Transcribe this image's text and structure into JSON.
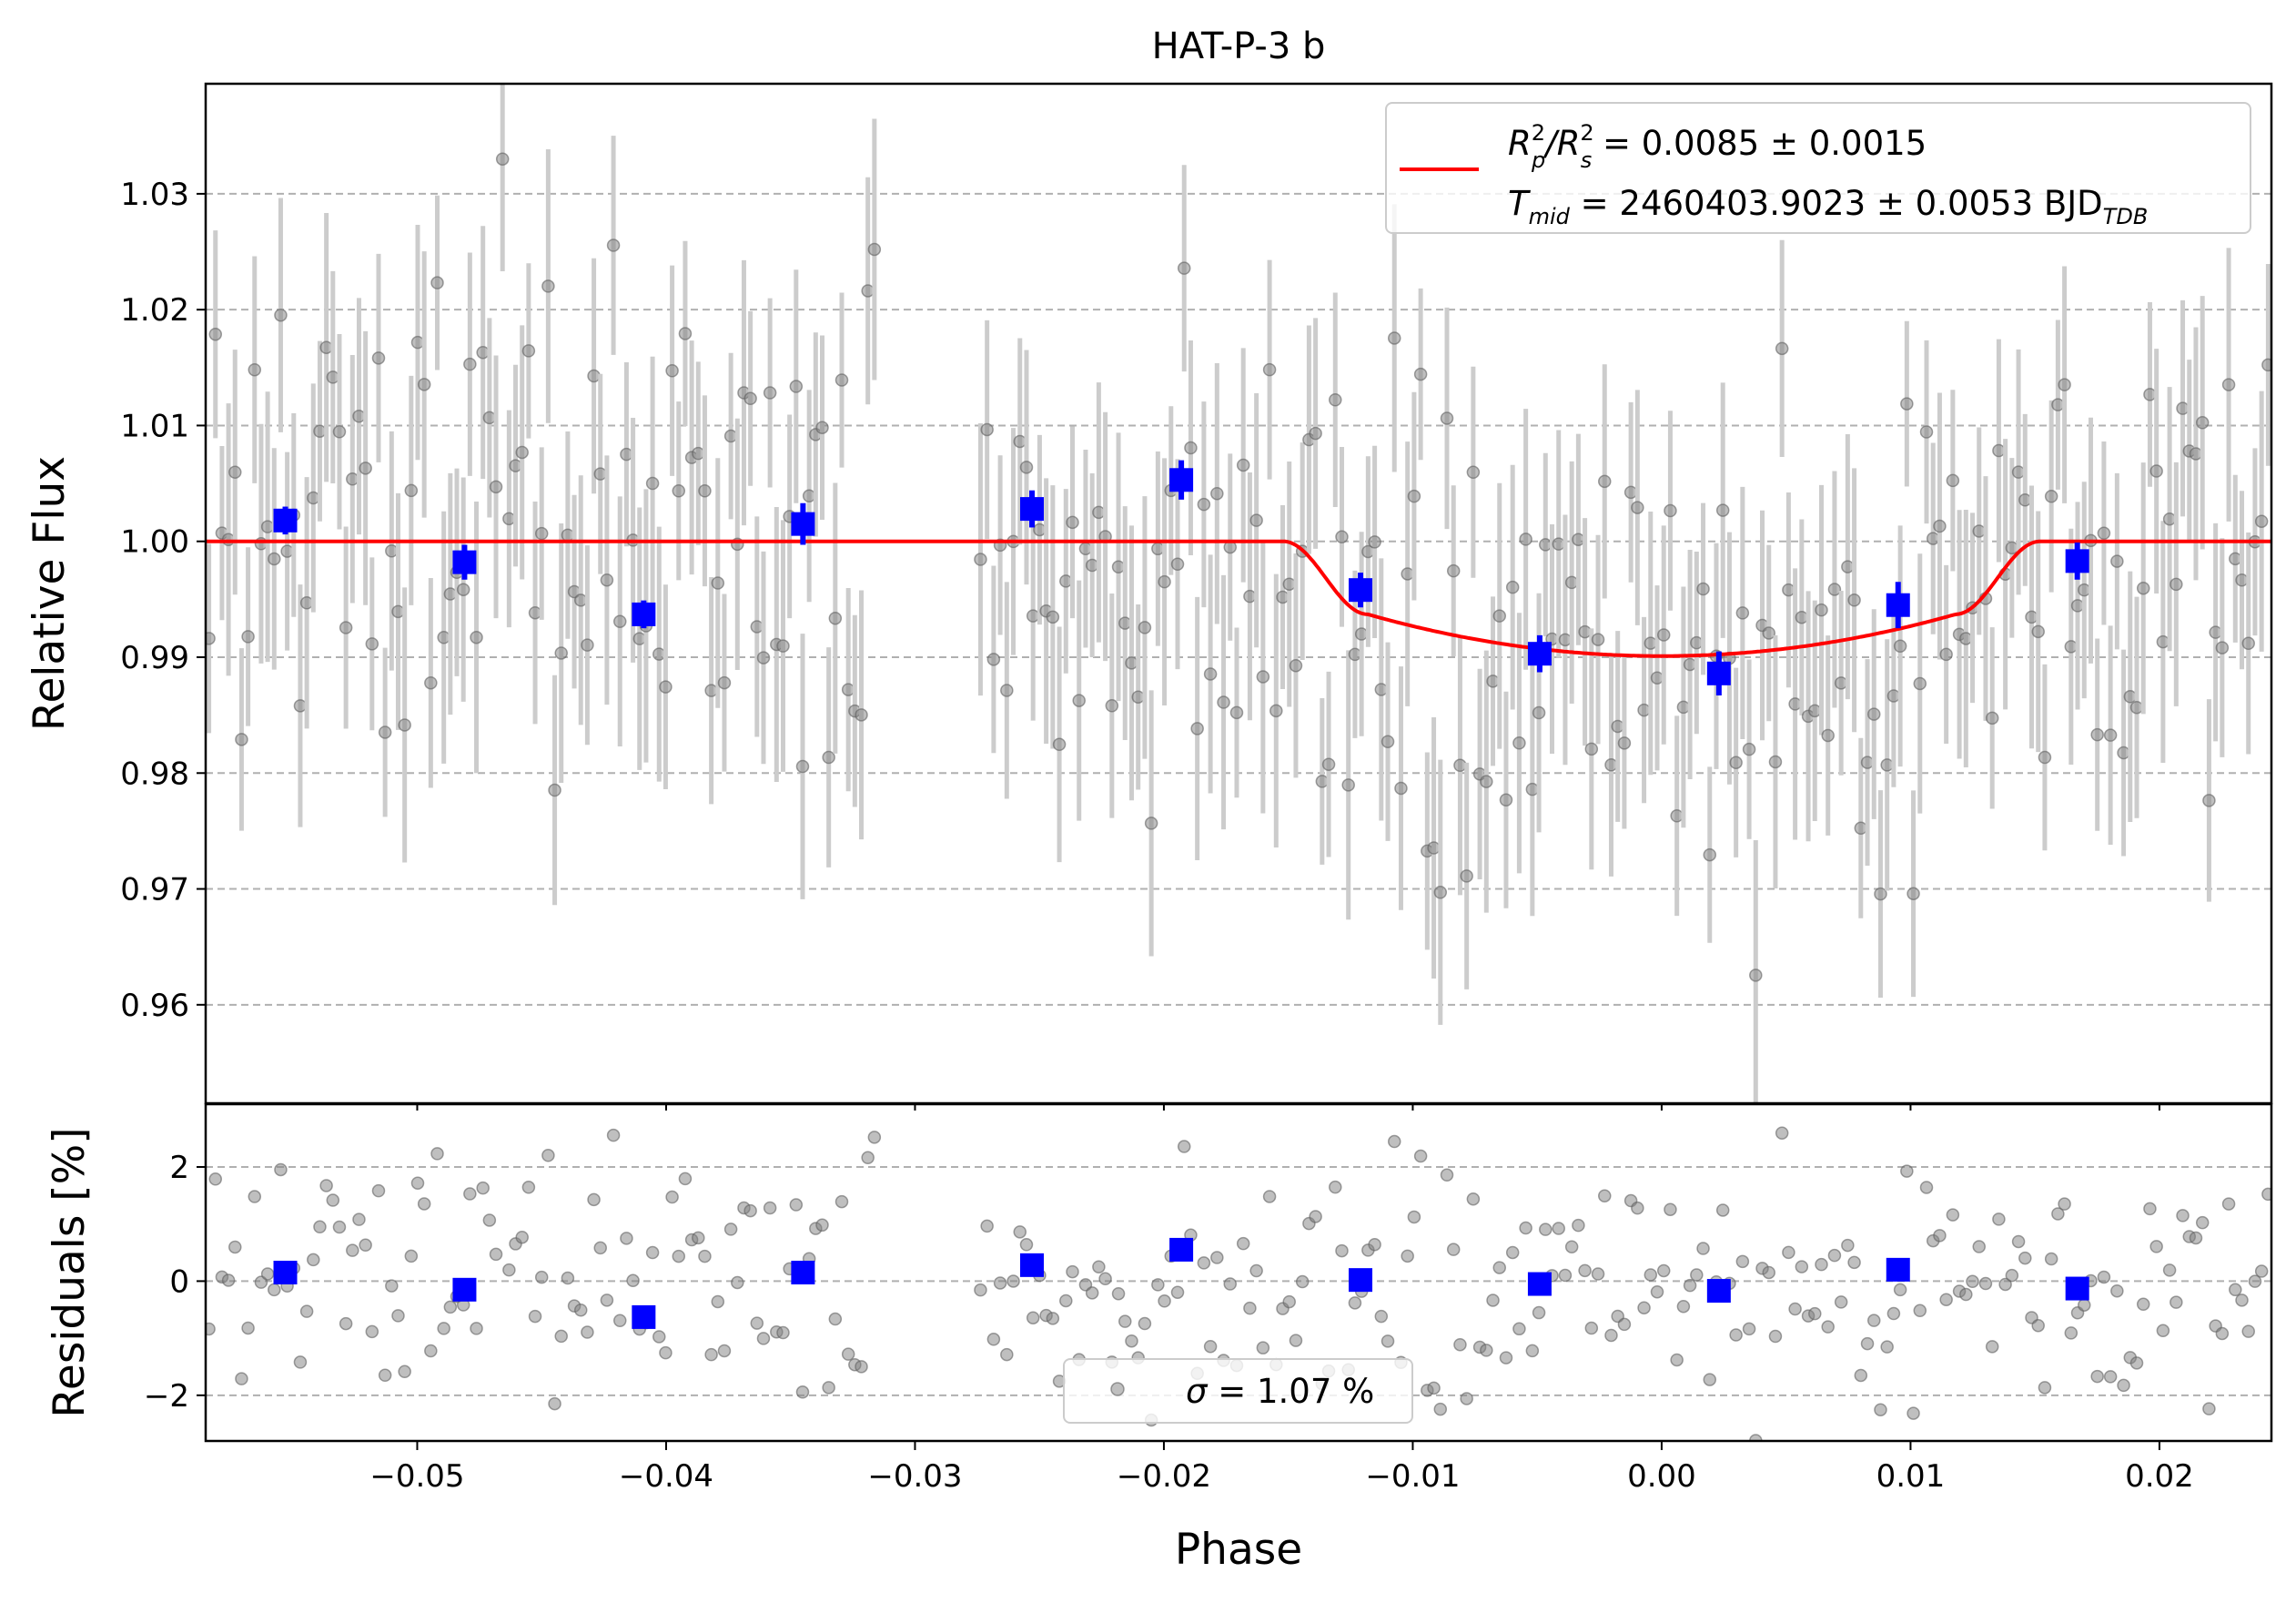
{
  "chart_data": [
    {
      "type": "scatter",
      "panel": "light curve",
      "title": "HAT-P-3 b",
      "xlabel": "Phase",
      "ylabel": "Relative Flux",
      "xlim": [
        -0.0585,
        0.0245
      ],
      "ylim": [
        0.9515,
        1.0395
      ],
      "grid": "y dashed",
      "x_ticks": [
        "−0.05",
        "−0.04",
        "−0.03",
        "−0.02",
        "−0.01",
        "0.00",
        "0.01",
        "0.02"
      ],
      "x_tick_values": [
        -0.05,
        -0.04,
        -0.03,
        -0.02,
        -0.01,
        0.0,
        0.01,
        0.02
      ],
      "y_ticks": [
        "0.96",
        "0.97",
        "0.98",
        "0.99",
        "1.00",
        "1.01",
        "1.02",
        "1.03"
      ],
      "y_tick_values": [
        0.96,
        0.97,
        0.98,
        0.99,
        1.0,
        1.01,
        1.02,
        1.03
      ],
      "legend": {
        "placement": "upper right",
        "line1_main": "R",
        "line1_sup1": "2",
        "line1_sub1": "p",
        "line1_slash": "/R",
        "line1_sup2": "2",
        "line1_sub2": "s",
        "line1_tail": " = 0.0085 ± 0.0015",
        "line2_main": "T",
        "line2_sub": "mid",
        "line2_tail": " = 2460403.9023 ± 0.0053 BJD",
        "line2_tail_sub": "TDB"
      },
      "model": {
        "name": "transit model",
        "color": "#ff0000",
        "ingress_start": -0.0152,
        "ingress_end": -0.0118,
        "egress_start": 0.0118,
        "egress_end": 0.0152,
        "center_depth": 0.0099,
        "contact_depth": 0.0063
      },
      "series": [
        {
          "name": "binned",
          "color": "#0000ff",
          "x": [
            -0.0553,
            -0.0481,
            -0.0409,
            -0.0345,
            -0.0253,
            -0.0193,
            -0.0121,
            -0.0049,
            0.0023,
            0.0095,
            0.0167
          ],
          "y": [
            1.0018,
            0.9982,
            0.9937,
            1.0015,
            1.0028,
            1.0053,
            0.9958,
            0.9903,
            0.9886,
            0.9945,
            0.9983
          ],
          "yerr": [
            0.0012,
            0.0015,
            0.0012,
            0.0018,
            0.0016,
            0.0017,
            0.0015,
            0.0016,
            0.0019,
            0.002,
            0.0016
          ]
        }
      ],
      "raw_points": {
        "name": "raw",
        "color": "#808080",
        "errbar_color": "#cccccc",
        "x_ranges": [
          [
            -0.0585,
            -0.0315
          ],
          [
            -0.0275,
            0.0245
          ]
        ],
        "count": 300,
        "typical_error": 0.0095,
        "scatter_sigma": 0.0107
      }
    },
    {
      "type": "scatter",
      "panel": "residuals",
      "xlabel": "Phase",
      "ylabel": "Residuals [%]",
      "xlim": [
        -0.0585,
        0.0245
      ],
      "ylim": [
        -2.8,
        3.1
      ],
      "grid": "y dashed",
      "y_ticks": [
        "−2",
        "0",
        "2"
      ],
      "y_tick_values": [
        -2,
        0,
        2
      ],
      "legend": {
        "placement": "lower center",
        "sigma_symbol": "σ",
        "sigma_text": " = 1.07 %"
      },
      "series": [
        {
          "name": "binned residuals",
          "color": "#0000ff",
          "x": [
            -0.0553,
            -0.0481,
            -0.0409,
            -0.0345,
            -0.0253,
            -0.0193,
            -0.0121,
            -0.0049,
            0.0023,
            0.0095,
            0.0167
          ],
          "y": [
            0.15,
            -0.15,
            -0.63,
            0.15,
            0.28,
            0.55,
            0.02,
            -0.05,
            -0.17,
            0.2,
            -0.13
          ]
        }
      ]
    }
  ]
}
